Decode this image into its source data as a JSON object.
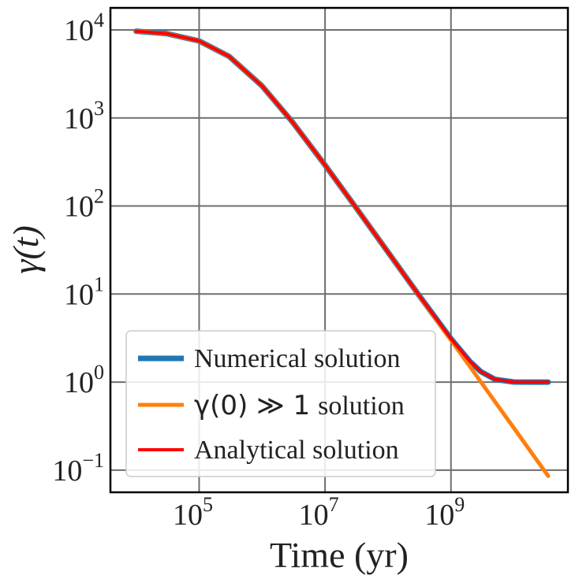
{
  "chart_data": {
    "type": "line",
    "xlabel": "Time (yr)",
    "ylabel": "γ(t)",
    "xscale": "log",
    "yscale": "log",
    "xlim": [
      3900.0,
      72000000000.0
    ],
    "ylim": [
      0.056,
      17800
    ],
    "grid": true,
    "legend_position": "lower-left",
    "x_ticks": [
      {
        "base": "10",
        "exp": "5",
        "value": 100000.0
      },
      {
        "base": "10",
        "exp": "7",
        "value": 10000000.0
      },
      {
        "base": "10",
        "exp": "9",
        "value": 1000000000.0
      }
    ],
    "y_ticks": [
      {
        "base": "10",
        "exp": "4",
        "value": 10000.0
      },
      {
        "base": "10",
        "exp": "3",
        "value": 1000.0
      },
      {
        "base": "10",
        "exp": "2",
        "value": 100.0
      },
      {
        "base": "10",
        "exp": "1",
        "value": 10.0
      },
      {
        "base": "10",
        "exp": "0",
        "value": 1
      },
      {
        "base": "10",
        "exp": "−1",
        "value": 0.1
      }
    ],
    "x": [
      10000.0,
      30000.0,
      100000.0,
      300000.0,
      1000000.0,
      3000000.0,
      10000000.0,
      30000000.0,
      100000000.0,
      300000000.0,
      1000000000.0,
      2000000000.0,
      3000000000.0,
      5000000000.0,
      10000000000.0,
      20000000000.0,
      35000000000.0
    ],
    "series": [
      {
        "name": "Numerical solution",
        "color": "#1f77b4",
        "values": [
          9677,
          9091,
          7500,
          5000,
          2308,
          909,
          291.3,
          99.0,
          29.92,
          10.03,
          3.11,
          1.716,
          1.313,
          1.074,
          1.0025,
          1.0,
          1.0
        ]
      },
      {
        "name_math": "γ(0) ≫ 1",
        "name": "solution",
        "color": "#ff7f0e",
        "values": [
          9677,
          9091,
          7500,
          5000,
          2308,
          909,
          291.3,
          99.0,
          29.91,
          9.99,
          2.999,
          1.4998,
          0.9999,
          0.5999,
          0.3,
          0.15,
          0.0857
        ]
      },
      {
        "name": "Analytical solution",
        "color": "#ff0000",
        "values": [
          9677,
          9091,
          7500,
          5000,
          2308,
          909,
          291.3,
          99.0,
          29.92,
          10.03,
          3.11,
          1.716,
          1.313,
          1.074,
          1.0025,
          1.0,
          1.0
        ]
      }
    ]
  }
}
